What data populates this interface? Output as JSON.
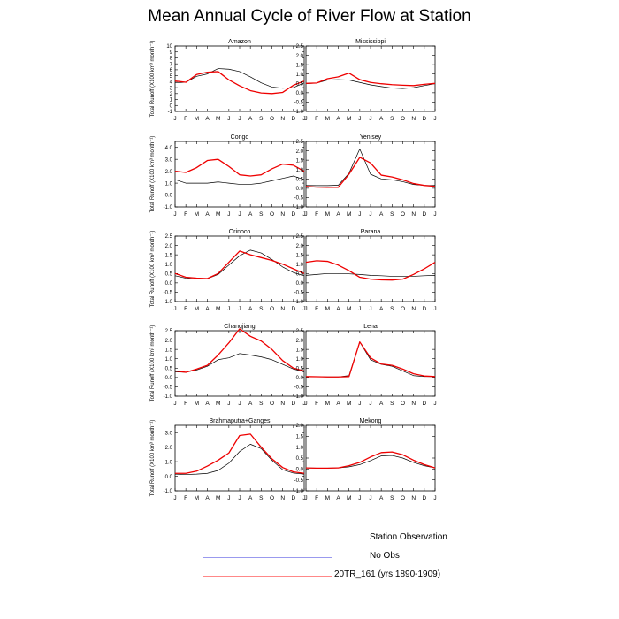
{
  "title": "Mean Annual Cycle of River Flow at Station",
  "colors": {
    "observation": "#000000",
    "no_obs": "#6666dd",
    "model": "#ee0000"
  },
  "legend": [
    {
      "label": "Station Observation",
      "color": "#7f7f7f"
    },
    {
      "label": "No Obs",
      "color": "#9999ee"
    },
    {
      "label": "20TR_161 (yrs 1890-1909)",
      "color": "#ff8888"
    }
  ],
  "chart_data": [
    {
      "type": "line",
      "title": "Amazon",
      "xlabel": "",
      "ylabel": "Total Runoff (X100 km³ month⁻¹)",
      "categories": [
        "J",
        "F",
        "M",
        "A",
        "M",
        "J",
        "J",
        "A",
        "S",
        "O",
        "N",
        "D",
        "J"
      ],
      "ylim": [
        -1,
        10
      ],
      "yticks": [
        "-1",
        "0",
        "1",
        "2",
        "3",
        "4",
        "5",
        "6",
        "7",
        "8",
        "9",
        "10"
      ],
      "series": [
        {
          "name": "Station Observation",
          "values": [
            3.8,
            3.9,
            4.9,
            5.3,
            6.2,
            6.1,
            5.7,
            4.8,
            3.8,
            3.1,
            2.9,
            3.0,
            3.8
          ]
        },
        {
          "name": "20TR_161 (yrs 1890-1909)",
          "values": [
            4.1,
            3.9,
            5.2,
            5.6,
            5.7,
            4.3,
            3.3,
            2.5,
            2.1,
            2.0,
            2.2,
            3.4,
            4.1
          ]
        }
      ]
    },
    {
      "type": "line",
      "title": "Mississippi",
      "xlabel": "",
      "ylabel": "",
      "categories": [
        "J",
        "F",
        "M",
        "A",
        "M",
        "J",
        "J",
        "A",
        "S",
        "O",
        "N",
        "D",
        "J"
      ],
      "ylim": [
        -1.0,
        2.5
      ],
      "yticks": [
        "-1.0",
        "-0.5",
        "0.0",
        "0.5",
        "1.0",
        "1.5",
        "2.0",
        "2.5"
      ],
      "series": [
        {
          "name": "Station Observation",
          "values": [
            0.48,
            0.52,
            0.68,
            0.7,
            0.68,
            0.55,
            0.42,
            0.33,
            0.25,
            0.22,
            0.27,
            0.38,
            0.48
          ]
        },
        {
          "name": "20TR_161 (yrs 1890-1909)",
          "values": [
            0.5,
            0.52,
            0.75,
            0.85,
            1.05,
            0.7,
            0.55,
            0.48,
            0.43,
            0.4,
            0.38,
            0.45,
            0.5
          ]
        }
      ]
    },
    {
      "type": "line",
      "title": "Congo",
      "xlabel": "",
      "ylabel": "Total Runoff (X100 km³ month⁻¹)",
      "categories": [
        "J",
        "F",
        "M",
        "A",
        "M",
        "J",
        "J",
        "A",
        "S",
        "O",
        "N",
        "D",
        "J"
      ],
      "ylim": [
        -1.0,
        4.5
      ],
      "yticks": [
        "-1.0",
        "0.0",
        "1.0",
        "2.0",
        "3.0",
        "4.0"
      ],
      "series": [
        {
          "name": "Station Observation",
          "values": [
            1.3,
            1.0,
            1.0,
            1.0,
            1.1,
            1.0,
            0.9,
            0.9,
            1.0,
            1.2,
            1.4,
            1.6,
            1.3
          ]
        },
        {
          "name": "20TR_161 (yrs 1890-1909)",
          "values": [
            2.0,
            1.9,
            2.3,
            2.9,
            3.0,
            2.4,
            1.7,
            1.6,
            1.7,
            2.2,
            2.6,
            2.5,
            2.0
          ]
        }
      ]
    },
    {
      "type": "line",
      "title": "Yenisey",
      "xlabel": "",
      "ylabel": "",
      "categories": [
        "J",
        "F",
        "M",
        "A",
        "M",
        "J",
        "J",
        "A",
        "S",
        "O",
        "N",
        "D",
        "J"
      ],
      "ylim": [
        -1.0,
        2.5
      ],
      "yticks": [
        "-1.0",
        "-0.5",
        "0.0",
        "0.5",
        "1.0",
        "1.5",
        "2.0",
        "2.5"
      ],
      "series": [
        {
          "name": "Station Observation",
          "values": [
            0.15,
            0.14,
            0.14,
            0.16,
            0.8,
            2.1,
            0.75,
            0.5,
            0.45,
            0.35,
            0.2,
            0.15,
            0.15
          ]
        },
        {
          "name": "20TR_161 (yrs 1890-1909)",
          "values": [
            0.1,
            0.06,
            0.05,
            0.05,
            0.75,
            1.65,
            1.35,
            0.7,
            0.6,
            0.45,
            0.25,
            0.15,
            0.1
          ]
        }
      ]
    },
    {
      "type": "line",
      "title": "Orinoco",
      "xlabel": "",
      "ylabel": "Total Runoff (X100 km³ month⁻¹)",
      "categories": [
        "J",
        "F",
        "M",
        "A",
        "M",
        "J",
        "J",
        "A",
        "S",
        "O",
        "N",
        "D",
        "J"
      ],
      "ylim": [
        -1.0,
        2.5
      ],
      "yticks": [
        "-1.0",
        "-0.5",
        "0.0",
        "0.5",
        "1.0",
        "1.5",
        "2.0",
        "2.5"
      ],
      "series": [
        {
          "name": "Station Observation",
          "values": [
            0.38,
            0.25,
            0.2,
            0.22,
            0.45,
            0.95,
            1.45,
            1.75,
            1.6,
            1.25,
            0.85,
            0.55,
            0.38
          ]
        },
        {
          "name": "20TR_161 (yrs 1890-1909)",
          "values": [
            0.5,
            0.3,
            0.25,
            0.23,
            0.5,
            1.1,
            1.7,
            1.5,
            1.35,
            1.2,
            1.0,
            0.75,
            0.5
          ]
        }
      ]
    },
    {
      "type": "line",
      "title": "Parana",
      "xlabel": "",
      "ylabel": "",
      "categories": [
        "J",
        "F",
        "M",
        "A",
        "M",
        "J",
        "J",
        "A",
        "S",
        "O",
        "N",
        "D",
        "J"
      ],
      "ylim": [
        -1.0,
        2.5
      ],
      "yticks": [
        "-1.0",
        "-0.5",
        "0.0",
        "0.5",
        "1.0",
        "1.5",
        "2.0",
        "2.5"
      ],
      "series": [
        {
          "name": "Station Observation",
          "values": [
            0.4,
            0.45,
            0.5,
            0.5,
            0.48,
            0.45,
            0.4,
            0.38,
            0.35,
            0.35,
            0.35,
            0.38,
            0.4
          ]
        },
        {
          "name": "20TR_161 (yrs 1890-1909)",
          "values": [
            1.1,
            1.18,
            1.15,
            0.95,
            0.65,
            0.3,
            0.2,
            0.16,
            0.15,
            0.2,
            0.45,
            0.75,
            1.1
          ]
        }
      ]
    },
    {
      "type": "line",
      "title": "Changjiang",
      "xlabel": "",
      "ylabel": "Total Runoff (X100 km³ month⁻¹)",
      "categories": [
        "J",
        "F",
        "M",
        "A",
        "M",
        "J",
        "J",
        "A",
        "S",
        "O",
        "N",
        "D",
        "J"
      ],
      "ylim": [
        -1.0,
        2.5
      ],
      "yticks": [
        "-1.0",
        "-0.5",
        "0.0",
        "0.5",
        "1.0",
        "1.5",
        "2.0",
        "2.5"
      ],
      "series": [
        {
          "name": "Station Observation",
          "values": [
            0.3,
            0.28,
            0.4,
            0.6,
            0.95,
            1.05,
            1.28,
            1.2,
            1.1,
            0.95,
            0.7,
            0.45,
            0.3
          ]
        },
        {
          "name": "20TR_161 (yrs 1890-1909)",
          "values": [
            0.35,
            0.28,
            0.45,
            0.65,
            1.2,
            1.85,
            2.6,
            2.2,
            1.95,
            1.5,
            0.9,
            0.5,
            0.35
          ]
        }
      ]
    },
    {
      "type": "line",
      "title": "Lena",
      "xlabel": "",
      "ylabel": "",
      "categories": [
        "J",
        "F",
        "M",
        "A",
        "M",
        "J",
        "J",
        "A",
        "S",
        "O",
        "N",
        "D",
        "J"
      ],
      "ylim": [
        -1.0,
        2.5
      ],
      "yticks": [
        "-1.0",
        "-0.5",
        "0.0",
        "0.5",
        "1.0",
        "1.5",
        "2.0",
        "2.5"
      ],
      "series": [
        {
          "name": "Station Observation",
          "values": [
            0.05,
            0.04,
            0.03,
            0.03,
            0.1,
            1.9,
            0.95,
            0.7,
            0.6,
            0.35,
            0.1,
            0.05,
            0.05
          ]
        },
        {
          "name": "20TR_161 (yrs 1890-1909)",
          "values": [
            0.05,
            0.04,
            0.03,
            0.03,
            0.05,
            1.9,
            1.05,
            0.72,
            0.65,
            0.45,
            0.2,
            0.08,
            0.05
          ]
        }
      ]
    },
    {
      "type": "line",
      "title": "Brahmaputra+Ganges",
      "xlabel": "",
      "ylabel": "Total Runoff (X100 km³ month⁻¹)",
      "categories": [
        "J",
        "F",
        "M",
        "A",
        "M",
        "J",
        "J",
        "A",
        "S",
        "O",
        "N",
        "D",
        "J"
      ],
      "ylim": [
        -1.0,
        3.5
      ],
      "yticks": [
        "-1.0",
        "0.0",
        "1.0",
        "2.0",
        "3.0"
      ],
      "series": [
        {
          "name": "Station Observation",
          "values": [
            0.15,
            0.12,
            0.15,
            0.2,
            0.4,
            0.9,
            1.7,
            2.2,
            1.9,
            1.1,
            0.45,
            0.22,
            0.15
          ]
        },
        {
          "name": "20TR_161 (yrs 1890-1909)",
          "values": [
            0.2,
            0.2,
            0.35,
            0.7,
            1.1,
            1.6,
            2.8,
            2.9,
            2.0,
            1.2,
            0.6,
            0.3,
            0.2
          ]
        }
      ]
    },
    {
      "type": "line",
      "title": "Mekong",
      "xlabel": "",
      "ylabel": "",
      "categories": [
        "J",
        "F",
        "M",
        "A",
        "M",
        "J",
        "J",
        "A",
        "S",
        "O",
        "N",
        "D",
        "J"
      ],
      "ylim": [
        -1.0,
        2.0
      ],
      "yticks": [
        "-1.0",
        "-0.5",
        "0.0",
        "0.5",
        "1.0",
        "1.5",
        "2.0"
      ],
      "series": [
        {
          "name": "Station Observation",
          "values": [
            0.05,
            0.04,
            0.04,
            0.05,
            0.1,
            0.2,
            0.38,
            0.6,
            0.62,
            0.5,
            0.3,
            0.15,
            0.05
          ]
        },
        {
          "name": "20TR_161 (yrs 1890-1909)",
          "values": [
            0.05,
            0.04,
            0.04,
            0.05,
            0.15,
            0.3,
            0.55,
            0.75,
            0.78,
            0.65,
            0.4,
            0.2,
            0.05
          ]
        }
      ]
    }
  ]
}
